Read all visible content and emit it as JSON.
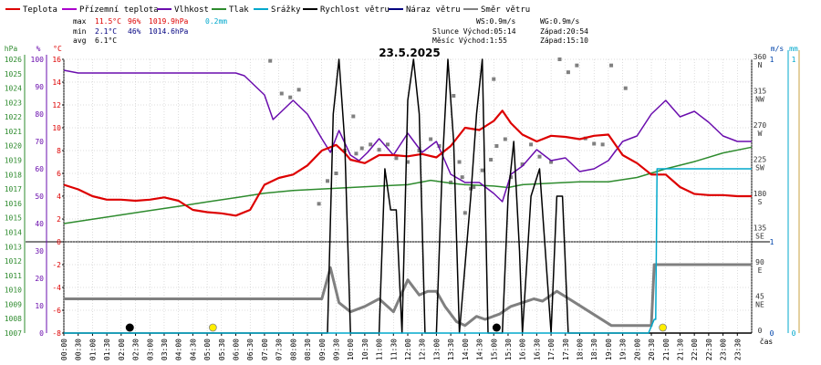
{
  "chart_data": {
    "type": "line",
    "title": "23.5.2025",
    "legend": [
      {
        "key": "temp",
        "label": "Teplota",
        "color": "#dd0000"
      },
      {
        "key": "ground_temp",
        "label": "Přízemní teplota",
        "color": "#aa00cc"
      },
      {
        "key": "humidity",
        "label": "Vlhkost",
        "color": "#6a0dad"
      },
      {
        "key": "pressure",
        "label": "Tlak",
        "color": "#2e8b2e"
      },
      {
        "key": "rain",
        "label": "Srážky",
        "color": "#00a8cc"
      },
      {
        "key": "wind_speed",
        "label": "Rychlost větru",
        "color": "#000000"
      },
      {
        "key": "wind_gust",
        "label": "Náraz větru",
        "color": "#000080"
      },
      {
        "key": "wind_dir",
        "label": "Směr větru",
        "color": "#808080"
      }
    ],
    "stats": {
      "max": {
        "label": "max",
        "temp": "11.5°C",
        "hum": "96%",
        "press": "1019.9hPa",
        "rain": "0.2mm"
      },
      "min": {
        "label": "min",
        "temp": "2.1°C",
        "hum": "46%",
        "press": "1014.6hPa"
      },
      "avg": {
        "label": "avg",
        "temp": "6.1°C"
      }
    },
    "info": {
      "ws": "WS:0.9m/s",
      "wg": "WG:0.9m/s",
      "sun_rise": "Slunce Východ:05:14",
      "sun_set": "Západ:20:54",
      "moon_rise": "Měsíc Východ:1:55",
      "moon_set": "Západ:15:10"
    },
    "axes": {
      "hpa_unit": "hPa",
      "pct_unit": "%",
      "degc_unit": "°C",
      "ms_unit": "m/s",
      "mm_unit": "mm",
      "time_unit": "čas",
      "hpa_ticks": [
        1026,
        1025,
        1024,
        1023,
        1022,
        1021,
        1020,
        1019,
        1018,
        1017,
        1016,
        1015,
        1014,
        1013,
        1012,
        1011,
        1010,
        1009,
        1008,
        1007
      ],
      "pct_ticks": [
        100,
        90,
        80,
        70,
        60,
        50,
        40,
        30,
        20,
        10,
        0
      ],
      "temp_ticks_upper": [
        16,
        14,
        12,
        10,
        8,
        6,
        4,
        2,
        0
      ],
      "temp_ticks_lower": [
        -2,
        -4,
        -6,
        -8
      ],
      "dir_ticks": [
        {
          "deg": "360",
          "lbl": "N"
        },
        {
          "deg": "315",
          "lbl": "NW"
        },
        {
          "deg": "270",
          "lbl": "W"
        },
        {
          "deg": "225",
          "lbl": "SW"
        },
        {
          "deg": "180",
          "lbl": "S"
        },
        {
          "deg": "135",
          "lbl": "SE"
        },
        {
          "deg": "90",
          "lbl": "E"
        },
        {
          "deg": "45",
          "lbl": "NE"
        },
        {
          "deg": "0",
          "lbl": ""
        }
      ],
      "ms_ticks": [
        "1",
        "1",
        "0"
      ],
      "mm_ticks": [
        "1",
        "0"
      ],
      "x_ticks": [
        "00:00",
        "00:30",
        "01:00",
        "01:30",
        "02:00",
        "02:30",
        "03:00",
        "03:30",
        "04:00",
        "04:30",
        "05:00",
        "05:30",
        "06:00",
        "06:30",
        "07:00",
        "07:30",
        "08:00",
        "08:30",
        "09:00",
        "09:30",
        "10:00",
        "10:30",
        "11:00",
        "11:30",
        "12:00",
        "12:30",
        "13:00",
        "13:30",
        "14:00",
        "14:30",
        "15:00",
        "15:30",
        "16:00",
        "16:30",
        "17:00",
        "17:30",
        "18:00",
        "18:30",
        "19:00",
        "19:30",
        "20:00",
        "20:30",
        "21:00",
        "21:30",
        "22:00",
        "22:30",
        "23:00",
        "23:30"
      ]
    },
    "series": {
      "temp": [
        [
          0,
          5.0
        ],
        [
          0.5,
          4.6
        ],
        [
          1,
          4.0
        ],
        [
          1.5,
          3.7
        ],
        [
          2,
          3.7
        ],
        [
          2.5,
          3.6
        ],
        [
          3,
          3.7
        ],
        [
          3.5,
          3.9
        ],
        [
          4,
          3.6
        ],
        [
          4.5,
          2.8
        ],
        [
          5,
          2.6
        ],
        [
          5.5,
          2.5
        ],
        [
          6,
          2.3
        ],
        [
          6.5,
          2.8
        ],
        [
          7,
          5.0
        ],
        [
          7.5,
          5.6
        ],
        [
          8,
          5.9
        ],
        [
          8.5,
          6.7
        ],
        [
          9,
          8.0
        ],
        [
          9.5,
          8.5
        ],
        [
          9.8,
          7.8
        ],
        [
          10,
          7.2
        ],
        [
          10.5,
          6.9
        ],
        [
          11,
          7.6
        ],
        [
          11.5,
          7.6
        ],
        [
          12,
          7.5
        ],
        [
          12.5,
          7.7
        ],
        [
          13,
          7.4
        ],
        [
          13.5,
          8.4
        ],
        [
          14,
          10.0
        ],
        [
          14.5,
          9.8
        ],
        [
          15,
          10.6
        ],
        [
          15.3,
          11.5
        ],
        [
          15.6,
          10.4
        ],
        [
          16,
          9.4
        ],
        [
          16.5,
          8.8
        ],
        [
          17,
          9.3
        ],
        [
          17.5,
          9.2
        ],
        [
          18,
          9.0
        ],
        [
          18.5,
          9.3
        ],
        [
          19,
          9.4
        ],
        [
          19.5,
          7.6
        ],
        [
          20,
          6.9
        ],
        [
          20.5,
          5.9
        ],
        [
          21,
          5.9
        ],
        [
          21.5,
          4.8
        ],
        [
          22,
          4.2
        ],
        [
          22.5,
          4.1
        ],
        [
          23,
          4.1
        ],
        [
          23.5,
          4.0
        ],
        [
          24,
          4.0
        ]
      ],
      "humidity": [
        [
          0,
          96
        ],
        [
          0.5,
          95
        ],
        [
          1,
          95
        ],
        [
          1.5,
          95
        ],
        [
          2,
          95
        ],
        [
          3,
          95
        ],
        [
          4,
          95
        ],
        [
          5,
          95
        ],
        [
          6,
          95
        ],
        [
          6.3,
          94
        ],
        [
          6.6,
          91
        ],
        [
          7,
          87
        ],
        [
          7.3,
          78
        ],
        [
          7.6,
          81
        ],
        [
          8,
          85
        ],
        [
          8.5,
          80
        ],
        [
          9,
          71
        ],
        [
          9.3,
          66
        ],
        [
          9.6,
          74
        ],
        [
          10,
          65
        ],
        [
          10.3,
          63
        ],
        [
          10.6,
          66
        ],
        [
          11,
          71
        ],
        [
          11.5,
          65
        ],
        [
          12,
          73
        ],
        [
          12.5,
          66
        ],
        [
          13,
          70
        ],
        [
          13.5,
          58
        ],
        [
          14,
          55
        ],
        [
          14.5,
          55
        ],
        [
          15,
          51
        ],
        [
          15.3,
          48
        ],
        [
          15.6,
          58
        ],
        [
          16,
          61
        ],
        [
          16.5,
          67
        ],
        [
          17,
          63
        ],
        [
          17.5,
          64
        ],
        [
          18,
          59
        ],
        [
          18.5,
          60
        ],
        [
          19,
          63
        ],
        [
          19.5,
          70
        ],
        [
          20,
          72
        ],
        [
          20.5,
          80
        ],
        [
          21,
          85
        ],
        [
          21.5,
          79
        ],
        [
          22,
          81
        ],
        [
          22.5,
          77
        ],
        [
          23,
          72
        ],
        [
          23.5,
          70
        ],
        [
          24,
          70
        ]
      ],
      "pressure": [
        [
          0,
          1014.6
        ],
        [
          1,
          1014.9
        ],
        [
          2,
          1015.2
        ],
        [
          3,
          1015.5
        ],
        [
          4,
          1015.8
        ],
        [
          5,
          1016.1
        ],
        [
          6,
          1016.4
        ],
        [
          7,
          1016.7
        ],
        [
          8,
          1016.9
        ],
        [
          9,
          1017.0
        ],
        [
          10,
          1017.1
        ],
        [
          11,
          1017.2
        ],
        [
          12,
          1017.3
        ],
        [
          12.8,
          1017.6
        ],
        [
          13.5,
          1017.4
        ],
        [
          14,
          1017.3
        ],
        [
          15,
          1017.2
        ],
        [
          15.5,
          1017.1
        ],
        [
          16,
          1017.3
        ],
        [
          17,
          1017.4
        ],
        [
          18,
          1017.5
        ],
        [
          19,
          1017.5
        ],
        [
          20,
          1017.8
        ],
        [
          21,
          1018.4
        ],
        [
          22,
          1018.9
        ],
        [
          23,
          1019.5
        ],
        [
          24,
          1019.9
        ]
      ],
      "wind_speed": [
        [
          0,
          0
        ],
        [
          9.2,
          0
        ],
        [
          9.4,
          0.8
        ],
        [
          9.6,
          1.0
        ],
        [
          9.8,
          0.7
        ],
        [
          10,
          0
        ],
        [
          11,
          0
        ],
        [
          11.2,
          0.6
        ],
        [
          11.4,
          0.45
        ],
        [
          11.6,
          0.45
        ],
        [
          11.8,
          0
        ],
        [
          12,
          0.85
        ],
        [
          12.2,
          1.0
        ],
        [
          12.4,
          0.8
        ],
        [
          12.6,
          0
        ],
        [
          13.0,
          0
        ],
        [
          13.2,
          0.6
        ],
        [
          13.4,
          1.0
        ],
        [
          13.6,
          0.7
        ],
        [
          13.8,
          0
        ],
        [
          14.2,
          0.5
        ],
        [
          14.4,
          0.8
        ],
        [
          14.6,
          1.0
        ],
        [
          14.8,
          0
        ],
        [
          15.3,
          0
        ],
        [
          15.5,
          0.5
        ],
        [
          15.7,
          0.7
        ],
        [
          15.9,
          0.3
        ],
        [
          16.0,
          0
        ],
        [
          16.3,
          0.5
        ],
        [
          16.6,
          0.6
        ],
        [
          17,
          0
        ],
        [
          17.2,
          0.5
        ],
        [
          17.4,
          0.5
        ],
        [
          17.6,
          0
        ],
        [
          24,
          0
        ]
      ],
      "rain_cumulative": [
        [
          0,
          0
        ],
        [
          20.4,
          0
        ],
        [
          20.6,
          0.05
        ],
        [
          20.65,
          0.05
        ],
        [
          20.7,
          0.6
        ],
        [
          24,
          0.6
        ]
      ],
      "wind_dir_upper": [
        [
          8.9,
          170
        ],
        [
          9.2,
          200
        ],
        [
          9.5,
          210
        ],
        [
          9.8,
          240
        ],
        [
          10.1,
          285
        ],
        [
          10.2,
          236
        ],
        [
          10.4,
          243
        ],
        [
          10.7,
          248
        ],
        [
          11,
          241
        ],
        [
          11.3,
          248
        ],
        [
          11.6,
          230
        ],
        [
          12,
          225
        ],
        [
          12.4,
          240
        ],
        [
          12.8,
          255
        ],
        [
          13.1,
          246
        ],
        [
          13.5,
          198
        ],
        [
          13.6,
          312
        ],
        [
          13.9,
          205
        ],
        [
          14.3,
          192
        ],
        [
          14.6,
          214
        ],
        [
          14.9,
          228
        ],
        [
          15.1,
          246
        ],
        [
          15.4,
          255
        ],
        [
          15.6,
          205
        ],
        [
          16.0,
          222
        ],
        [
          16.3,
          248
        ],
        [
          16.6,
          232
        ],
        [
          17.0,
          225
        ],
        [
          17.3,
          360
        ],
        [
          17.6,
          343
        ],
        [
          17.9,
          352
        ],
        [
          18.2,
          256
        ],
        [
          18.5,
          249
        ],
        [
          18.8,
          248
        ],
        [
          19.1,
          352
        ],
        [
          19.6,
          322
        ],
        [
          7.2,
          358
        ],
        [
          7.6,
          315
        ],
        [
          7.9,
          310
        ],
        [
          8.2,
          320
        ],
        [
          9.5,
          210
        ],
        [
          13.8,
          225
        ],
        [
          14.0,
          158
        ],
        [
          14.2,
          190
        ],
        [
          15.0,
          334
        ]
      ],
      "wind_dir_lower": [
        [
          0,
          45
        ],
        [
          9.0,
          45
        ],
        [
          9.3,
          86
        ],
        [
          9.6,
          40
        ],
        [
          10.0,
          28
        ],
        [
          10.5,
          35
        ],
        [
          11.0,
          45
        ],
        [
          11.5,
          28
        ],
        [
          12.0,
          70
        ],
        [
          12.4,
          50
        ],
        [
          12.7,
          55
        ],
        [
          13.0,
          55
        ],
        [
          13.3,
          35
        ],
        [
          13.7,
          15
        ],
        [
          14.0,
          10
        ],
        [
          14.4,
          22
        ],
        [
          14.7,
          18
        ],
        [
          15.2,
          25
        ],
        [
          15.6,
          35
        ],
        [
          16.0,
          40
        ],
        [
          16.4,
          45
        ],
        [
          16.7,
          42
        ],
        [
          17.2,
          55
        ],
        [
          17.5,
          48
        ],
        [
          19.1,
          10
        ],
        [
          20.5,
          10
        ],
        [
          20.6,
          90
        ],
        [
          24,
          90
        ]
      ]
    },
    "markers": [
      {
        "t": 2.3,
        "type": "moon_new"
      },
      {
        "t": 5.2,
        "type": "sun"
      },
      {
        "t": 15.1,
        "type": "moon_new"
      },
      {
        "t": 20.9,
        "type": "sun"
      }
    ],
    "ranges": {
      "temp_upper": [
        0,
        16
      ],
      "temp_lower": [
        -8,
        0
      ],
      "pressure": [
        1007,
        1026
      ],
      "humidity": [
        0,
        100
      ],
      "wind_dir": [
        0,
        360
      ],
      "wind_speed": [
        0,
        1
      ],
      "rain": [
        0,
        1
      ],
      "time": [
        0,
        24
      ]
    }
  }
}
